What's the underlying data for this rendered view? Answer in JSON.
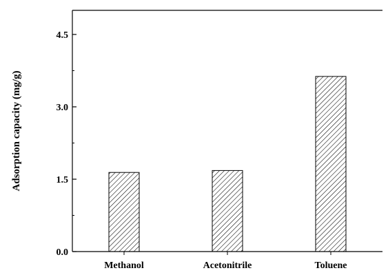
{
  "chart_data": {
    "type": "bar",
    "title": "",
    "xlabel": "",
    "ylabel": "Adsorption capacity (mg/g)",
    "categories": [
      "Methanol",
      "Acetonitrile",
      "Toluene"
    ],
    "values": [
      1.64,
      1.68,
      3.63
    ],
    "ylim": [
      0,
      5.0
    ],
    "yticks": [
      0.0,
      1.5,
      3.0,
      4.5
    ],
    "ytick_labels": [
      "0.0",
      "1.5",
      "3.0",
      "4.5"
    ],
    "bar_fill": "hatched diagonal",
    "grid": false,
    "legend": "none"
  },
  "colors": {
    "axis": "#000000",
    "bar_stroke": "#000000",
    "hatch": "#000000",
    "background": "#ffffff"
  }
}
